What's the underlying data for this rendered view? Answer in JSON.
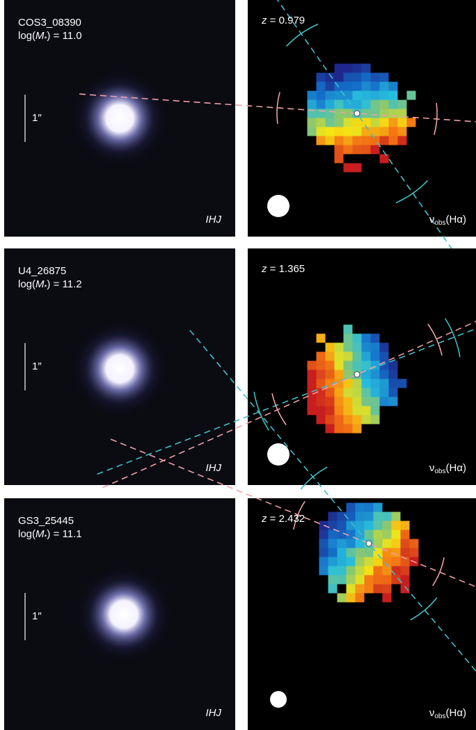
{
  "panels": [
    {
      "id": "COS3_08390",
      "mass_label": {
        "pre": "log(",
        "var": "M",
        "sub": "*",
        "post": ") = 11.0"
      },
      "scale": "1″",
      "bands": "IHJ",
      "redshift": {
        "var": "z",
        "post": " = 0.979"
      },
      "velocity_label": {
        "var": "ν",
        "sub": "obs",
        "post": "(Hα)"
      }
    },
    {
      "id": "U4_26875",
      "mass_label": {
        "pre": "log(",
        "var": "M",
        "sub": "*",
        "post": ") = 11.2"
      },
      "scale": "1″",
      "bands": "IHJ",
      "redshift": {
        "var": "z",
        "post": " = 1.365"
      },
      "velocity_label": {
        "var": "ν",
        "sub": "obs",
        "post": "(Hα)"
      }
    },
    {
      "id": "GS3_25445",
      "mass_label": {
        "pre": "log(",
        "var": "M",
        "sub": "*",
        "post": ") = 11.1"
      },
      "scale": "1″",
      "bands": "IHJ",
      "redshift": {
        "var": "z",
        "post": " = 2.432"
      },
      "velocity_label": {
        "var": "ν",
        "sub": "obs",
        "post": "(Hα)"
      }
    }
  ]
}
